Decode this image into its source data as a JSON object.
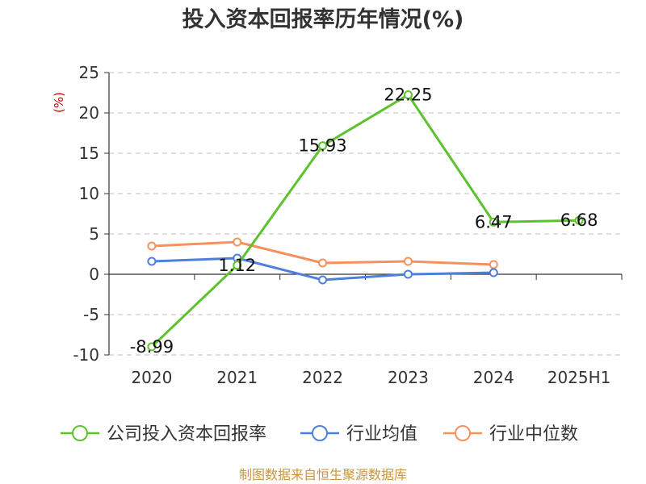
{
  "chart_data": {
    "type": "line",
    "title": "投入资本回报率历年情况(%)",
    "ylabel": "(%)",
    "categories": [
      "2020",
      "2021",
      "2022",
      "2023",
      "2024",
      "2025H1"
    ],
    "ylim": [
      -10,
      25
    ],
    "yticks": [
      25,
      20,
      15,
      10,
      5,
      0,
      -5,
      -10
    ],
    "grid": true,
    "legend_position": "bottom",
    "series": [
      {
        "name": "公司投入资本回报率",
        "color": "#5ec22e",
        "labeled": true,
        "values": [
          -8.99,
          1.12,
          15.93,
          22.25,
          6.47,
          6.68
        ]
      },
      {
        "name": "行业均值",
        "color": "#4f7fdc",
        "labeled": false,
        "values": [
          1.6,
          2.0,
          -0.7,
          0.0,
          0.2,
          null
        ]
      },
      {
        "name": "行业中位数",
        "color": "#f5915c",
        "labeled": false,
        "values": [
          3.5,
          4.0,
          1.4,
          1.6,
          1.2,
          null
        ]
      }
    ],
    "data_labels": [
      "-8.99",
      "1.12",
      "15.93",
      "22.25",
      "6.47",
      "6.68"
    ]
  },
  "source": "制图数据来自恒生聚源数据库"
}
